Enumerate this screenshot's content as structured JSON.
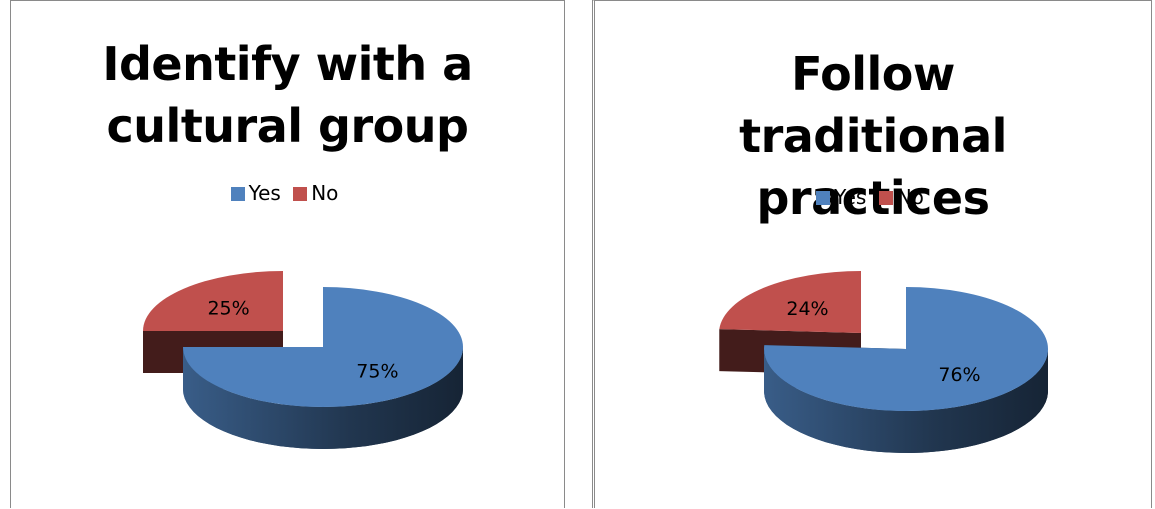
{
  "chart_data": [
    {
      "type": "pie",
      "title": "Identify with a cultural group",
      "categories": [
        "Yes",
        "No"
      ],
      "values": [
        75,
        25
      ],
      "data_labels": [
        "75%",
        "25%"
      ],
      "legend": "top",
      "colors": [
        "#4f81bd",
        "#c0504d"
      ],
      "three_d": true,
      "exploded": true
    },
    {
      "type": "pie",
      "title": "Follow traditional practices",
      "categories": [
        "Yes",
        "No"
      ],
      "values": [
        76,
        24
      ],
      "data_labels": [
        "76%",
        "24%"
      ],
      "legend": "top",
      "colors": [
        "#4f81bd",
        "#c0504d"
      ],
      "three_d": true,
      "exploded": true
    }
  ]
}
